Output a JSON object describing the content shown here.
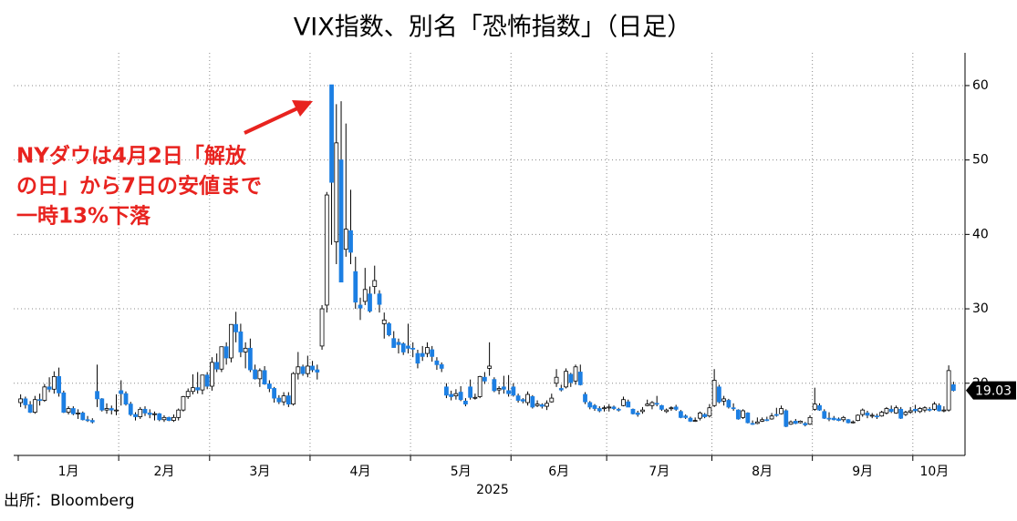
{
  "chart_data": {
    "type": "candlestick",
    "title": "VIX指数、別名「恐怖指数」（日足）",
    "xlabel": "2025",
    "source": "出所：Bloomberg",
    "annotation": [
      "NYダウは4月2日「解放",
      "の日」から7日の安値まで",
      "一時13%下落"
    ],
    "up_color": "#ffffff",
    "down_color": "#1c7fe3",
    "grid": true,
    "ylim": [
      10.3,
      64.4
    ],
    "yticks": [
      20,
      30,
      40,
      50,
      60
    ],
    "months": [
      {
        "label": "1月",
        "candles": [
          [
            17.4,
            18.5,
            16.8,
            17.9
          ],
          [
            17.9,
            18.2,
            16.6,
            17.1
          ],
          [
            17.1,
            17.6,
            16.0,
            16.1
          ],
          [
            16.1,
            18.3,
            15.9,
            17.8
          ],
          [
            17.8,
            18.6,
            17.0,
            17.7
          ],
          [
            17.7,
            19.9,
            17.5,
            19.5
          ],
          [
            19.5,
            20.8,
            18.8,
            19.2
          ],
          [
            19.2,
            21.6,
            18.6,
            20.9
          ],
          [
            20.9,
            22.1,
            18.2,
            18.7
          ],
          [
            18.7,
            19.0,
            16.0,
            16.1
          ],
          [
            16.1,
            16.9,
            15.8,
            16.6
          ],
          [
            16.6,
            16.9,
            15.7,
            15.9
          ],
          [
            15.9,
            16.5,
            15.2,
            16.0
          ],
          [
            16.0,
            16.2,
            15.0,
            15.1
          ],
          [
            15.1,
            15.6,
            14.8,
            15.0
          ],
          [
            15.0,
            15.3,
            14.6,
            14.8
          ],
          [
            18.9,
            22.5,
            16.8,
            17.9
          ],
          [
            17.9,
            18.0,
            16.2,
            16.4
          ],
          [
            16.4,
            17.3,
            15.9,
            16.6
          ],
          [
            16.6,
            17.0,
            15.8,
            16.4
          ],
          [
            16.4,
            18.5,
            15.7,
            16.4
          ]
        ]
      },
      {
        "label": "2月",
        "candles": [
          [
            19.0,
            20.4,
            17.0,
            18.6
          ],
          [
            18.6,
            18.9,
            17.0,
            17.2
          ],
          [
            17.2,
            17.5,
            15.6,
            15.8
          ],
          [
            15.8,
            16.1,
            15.0,
            15.5
          ],
          [
            15.5,
            16.8,
            15.2,
            16.5
          ],
          [
            16.5,
            16.9,
            15.6,
            16.0
          ],
          [
            16.0,
            16.5,
            15.3,
            15.8
          ],
          [
            15.8,
            16.2,
            15.0,
            15.9
          ],
          [
            15.9,
            16.0,
            14.9,
            15.1
          ],
          [
            15.1,
            15.7,
            14.8,
            15.4
          ],
          [
            15.4,
            15.5,
            14.9,
            15.0
          ],
          [
            15.0,
            15.8,
            14.8,
            15.4
          ],
          [
            15.4,
            16.6,
            15.0,
            16.4
          ],
          [
            16.4,
            18.3,
            16.2,
            18.2
          ],
          [
            18.2,
            19.3,
            17.9,
            18.9
          ],
          [
            18.9,
            21.2,
            18.5,
            19.4
          ],
          [
            19.4,
            21.5,
            18.6,
            19.1
          ],
          [
            19.1,
            21.1,
            18.5,
            21.1
          ],
          [
            21.1,
            21.5,
            19.2,
            19.6
          ]
        ]
      },
      {
        "label": "3月",
        "candles": [
          [
            19.6,
            23.5,
            19.0,
            22.8
          ],
          [
            22.8,
            24.0,
            21.5,
            21.9
          ],
          [
            21.9,
            24.9,
            21.5,
            24.9
          ],
          [
            24.9,
            25.5,
            22.5,
            23.4
          ],
          [
            23.4,
            27.9,
            22.8,
            27.9
          ],
          [
            27.9,
            29.6,
            25.5,
            26.9
          ],
          [
            26.9,
            28.0,
            23.5,
            24.2
          ],
          [
            24.2,
            25.5,
            22.0,
            24.7
          ],
          [
            24.7,
            26.0,
            21.5,
            21.8
          ],
          [
            21.8,
            22.5,
            20.5,
            20.6
          ],
          [
            20.6,
            22.0,
            19.5,
            21.7
          ],
          [
            21.7,
            22.3,
            19.8,
            19.9
          ],
          [
            19.9,
            20.4,
            18.8,
            19.3
          ],
          [
            19.3,
            19.5,
            17.4,
            18.0
          ],
          [
            18.0,
            18.4,
            17.2,
            17.5
          ],
          [
            17.5,
            18.8,
            17.0,
            18.3
          ],
          [
            18.3,
            18.8,
            16.8,
            17.2
          ],
          [
            17.2,
            21.5,
            17.0,
            21.3
          ],
          [
            21.3,
            24.2,
            20.5,
            22.2
          ],
          [
            22.2,
            22.5,
            21.0,
            21.3
          ],
          [
            21.3,
            23.7,
            20.8,
            22.3
          ]
        ]
      },
      {
        "label": "4月",
        "candles": [
          [
            22.3,
            23.0,
            21.5,
            21.8
          ],
          [
            21.8,
            22.5,
            20.5,
            21.5
          ],
          [
            25.0,
            30.5,
            24.5,
            30.0
          ],
          [
            30.5,
            45.7,
            29.5,
            45.3
          ],
          [
            60.1,
            60.1,
            38.6,
            47.0
          ],
          [
            39.0,
            57.5,
            36.0,
            52.3
          ],
          [
            50.0,
            57.9,
            33.6,
            33.6
          ],
          [
            38.0,
            54.9,
            37.0,
            40.7
          ],
          [
            40.5,
            46.0,
            36.0,
            37.6
          ],
          [
            35.0,
            37.0,
            30.0,
            30.9
          ],
          [
            30.5,
            31.5,
            28.5,
            30.1
          ],
          [
            31.0,
            35.5,
            30.5,
            32.6
          ],
          [
            32.0,
            33.0,
            29.5,
            29.7
          ],
          [
            33.0,
            35.8,
            32.0,
            33.8
          ],
          [
            32.0,
            32.5,
            29.5,
            30.6
          ],
          [
            28.0,
            29.5,
            26.0,
            28.5
          ],
          [
            28.0,
            28.2,
            26.3,
            26.5
          ],
          [
            26.0,
            27.0,
            24.8,
            24.8
          ],
          [
            25.5,
            26.0,
            24.0,
            25.2
          ],
          [
            25.3,
            25.5,
            23.8,
            24.2
          ],
          [
            25.0,
            28.0,
            24.0,
            24.7
          ]
        ]
      },
      {
        "label": "5月",
        "candles": [
          [
            24.7,
            25.5,
            23.5,
            24.6
          ],
          [
            24.0,
            24.5,
            22.0,
            22.7
          ],
          [
            24.0,
            25.0,
            23.0,
            23.6
          ],
          [
            24.0,
            25.5,
            23.5,
            24.8
          ],
          [
            24.5,
            25.0,
            22.9,
            23.6
          ],
          [
            23.0,
            23.5,
            21.8,
            22.5
          ],
          [
            22.5,
            22.8,
            21.5,
            22.0
          ],
          [
            19.5,
            20.0,
            18.0,
            18.4
          ],
          [
            18.5,
            19.0,
            17.7,
            18.2
          ],
          [
            18.3,
            19.2,
            17.8,
            18.6
          ],
          [
            18.8,
            19.6,
            17.6,
            17.8
          ],
          [
            17.6,
            18.0,
            16.9,
            17.2
          ],
          [
            19.5,
            20.5,
            17.8,
            18.1
          ],
          [
            18.0,
            18.6,
            17.8,
            18.1
          ],
          [
            18.2,
            21.0,
            18.0,
            20.9
          ],
          [
            20.8,
            21.5,
            19.9,
            20.3
          ],
          [
            22.0,
            25.5,
            21.0,
            22.3
          ],
          [
            20.5,
            20.8,
            18.8,
            19.0
          ],
          [
            19.1,
            19.6,
            18.5,
            19.3
          ],
          [
            19.5,
            21.0,
            18.6,
            19.2
          ],
          [
            19.0,
            21.1,
            18.2,
            18.6
          ]
        ]
      },
      {
        "label": "6月",
        "candles": [
          [
            19.5,
            20.0,
            18.2,
            18.4
          ],
          [
            18.3,
            18.6,
            17.4,
            17.7
          ],
          [
            17.8,
            18.0,
            17.3,
            17.6
          ],
          [
            17.4,
            18.9,
            17.0,
            18.5
          ],
          [
            18.2,
            18.4,
            16.6,
            16.8
          ],
          [
            17.0,
            17.7,
            16.8,
            17.2
          ],
          [
            17.1,
            17.3,
            16.6,
            16.9
          ],
          [
            16.9,
            17.7,
            16.4,
            17.3
          ],
          [
            17.5,
            18.6,
            17.4,
            18.0
          ],
          [
            20.0,
            21.9,
            19.5,
            20.8
          ],
          [
            19.3,
            19.8,
            18.9,
            19.1
          ],
          [
            19.5,
            22.0,
            19.3,
            21.6
          ],
          [
            21.2,
            21.4,
            19.5,
            20.1
          ],
          [
            20.3,
            22.5,
            19.8,
            22.2
          ],
          [
            21.5,
            22.5,
            19.7,
            19.8
          ],
          [
            18.5,
            18.8,
            17.2,
            17.5
          ],
          [
            17.4,
            17.6,
            16.5,
            16.8
          ],
          [
            17.0,
            17.2,
            16.3,
            16.6
          ],
          [
            16.6,
            16.9,
            16.1,
            16.3
          ],
          [
            16.6,
            17.0,
            16.2,
            16.7
          ]
        ]
      },
      {
        "label": "7月",
        "candles": [
          [
            16.8,
            17.2,
            16.2,
            16.8
          ],
          [
            16.8,
            17.0,
            16.4,
            16.6
          ],
          [
            16.5,
            16.7,
            16.2,
            16.4
          ],
          [
            17.0,
            18.2,
            16.9,
            17.8
          ],
          [
            17.5,
            17.8,
            16.8,
            16.8
          ],
          [
            16.5,
            16.6,
            15.8,
            15.9
          ],
          [
            16.0,
            16.3,
            15.5,
            15.8
          ],
          [
            16.2,
            16.8,
            15.9,
            16.4
          ],
          [
            17.0,
            17.8,
            16.9,
            17.2
          ],
          [
            17.0,
            17.6,
            16.5,
            17.4
          ],
          [
            17.3,
            18.3,
            16.9,
            17.2
          ],
          [
            17.0,
            17.1,
            16.3,
            16.5
          ],
          [
            16.2,
            16.6,
            16.0,
            16.4
          ],
          [
            16.6,
            16.9,
            16.3,
            16.7
          ],
          [
            16.8,
            17.1,
            16.3,
            16.5
          ],
          [
            16.2,
            16.4,
            15.3,
            15.4
          ],
          [
            15.6,
            15.8,
            15.2,
            15.4
          ],
          [
            15.3,
            15.5,
            14.8,
            14.9
          ],
          [
            15.0,
            15.4,
            14.8,
            15.0
          ],
          [
            15.3,
            16.2,
            15.0,
            16.0
          ],
          [
            15.8,
            16.0,
            15.3,
            15.5
          ],
          [
            15.6,
            17.2,
            15.4,
            16.7
          ]
        ]
      },
      {
        "label": "8月",
        "candles": [
          [
            17.0,
            21.9,
            16.8,
            20.4
          ],
          [
            19.5,
            19.8,
            17.3,
            17.5
          ],
          [
            17.6,
            18.3,
            17.0,
            17.9
          ],
          [
            17.7,
            17.9,
            16.6,
            16.8
          ],
          [
            16.7,
            17.3,
            16.3,
            16.6
          ],
          [
            16.4,
            16.5,
            15.1,
            15.2
          ],
          [
            15.4,
            16.5,
            15.2,
            16.3
          ],
          [
            16.0,
            16.1,
            14.6,
            14.7
          ],
          [
            14.6,
            15.0,
            14.4,
            14.5
          ],
          [
            14.6,
            15.4,
            14.5,
            14.8
          ],
          [
            14.9,
            15.4,
            14.8,
            15.1
          ],
          [
            15.1,
            15.5,
            14.9,
            15.0
          ],
          [
            15.2,
            16.0,
            15.1,
            15.6
          ],
          [
            15.8,
            16.7,
            15.5,
            15.7
          ],
          [
            15.9,
            17.0,
            15.8,
            16.6
          ],
          [
            16.3,
            16.5,
            14.1,
            14.2
          ],
          [
            14.5,
            15.0,
            14.4,
            14.8
          ],
          [
            14.9,
            15.2,
            14.5,
            14.6
          ],
          [
            14.7,
            15.0,
            14.6,
            14.9
          ],
          [
            14.6,
            14.8,
            14.2,
            14.4
          ],
          [
            14.5,
            15.7,
            14.4,
            15.4
          ]
        ]
      },
      {
        "label": "9月",
        "candles": [
          [
            16.5,
            19.4,
            16.3,
            17.2
          ],
          [
            17.0,
            17.3,
            16.3,
            16.4
          ],
          [
            16.2,
            16.5,
            15.2,
            15.3
          ],
          [
            15.3,
            16.1,
            14.9,
            15.2
          ],
          [
            15.3,
            15.6,
            15.0,
            15.1
          ],
          [
            15.2,
            15.4,
            14.9,
            15.0
          ],
          [
            15.1,
            15.6,
            14.8,
            15.4
          ],
          [
            15.1,
            15.2,
            14.6,
            14.7
          ],
          [
            14.8,
            15.0,
            14.6,
            14.8
          ],
          [
            15.0,
            15.8,
            14.9,
            15.7
          ],
          [
            15.8,
            16.6,
            15.5,
            16.4
          ],
          [
            16.0,
            16.3,
            15.3,
            15.7
          ],
          [
            15.6,
            16.0,
            15.3,
            15.7
          ],
          [
            15.6,
            15.9,
            15.2,
            15.5
          ],
          [
            15.6,
            16.3,
            15.5,
            16.1
          ],
          [
            16.0,
            16.8,
            15.8,
            16.6
          ],
          [
            16.5,
            17.0,
            16.0,
            16.2
          ],
          [
            16.0,
            17.0,
            15.9,
            16.7
          ],
          [
            16.5,
            16.8,
            15.2,
            15.3
          ],
          [
            15.8,
            16.3,
            15.6,
            16.1
          ],
          [
            16.1,
            16.8,
            15.9,
            16.3
          ]
        ]
      },
      {
        "label": "10月",
        "candles": [
          [
            16.5,
            17.1,
            16.0,
            16.3
          ],
          [
            16.2,
            16.8,
            16.0,
            16.6
          ],
          [
            16.4,
            16.9,
            16.1,
            16.7
          ],
          [
            16.5,
            16.8,
            16.2,
            16.4
          ],
          [
            16.5,
            17.5,
            16.3,
            17.2
          ],
          [
            17.0,
            17.3,
            16.2,
            16.3
          ],
          [
            16.4,
            16.9,
            16.1,
            16.4
          ],
          [
            16.4,
            22.4,
            16.2,
            21.7
          ],
          [
            19.8,
            20.2,
            18.9,
            19.03
          ]
        ]
      }
    ]
  }
}
